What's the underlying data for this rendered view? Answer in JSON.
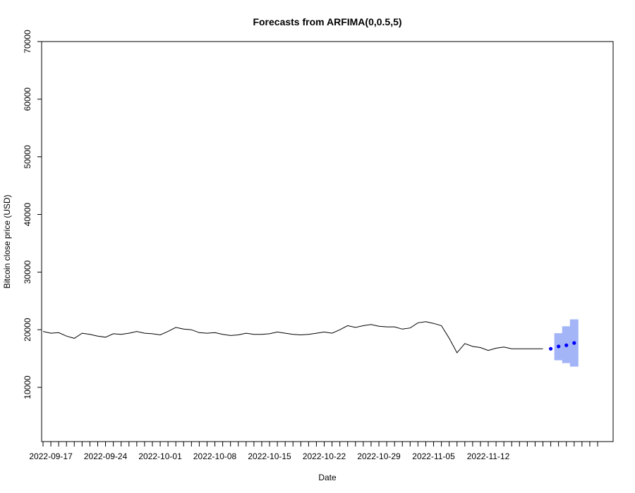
{
  "chart_data": {
    "type": "line",
    "title": "Forecasts from ARFIMA(0,0.5,5)",
    "xlabel": "Date",
    "ylabel": "Bitcoin close price (USD)",
    "ylim": [
      0,
      70000
    ],
    "y_ticks": [
      10000,
      20000,
      30000,
      40000,
      50000,
      60000,
      70000
    ],
    "x_ticks": [
      "2022-09-17",
      "2022-09-24",
      "2022-10-01",
      "2022-10-08",
      "2022-10-15",
      "2022-10-22",
      "2022-10-29",
      "2022-11-05",
      "2022-11-12"
    ],
    "x_range": [
      "2022-09-16",
      "2022-11-26"
    ],
    "grid": false,
    "series": [
      {
        "values": [
          [
            "2022-09-16",
            19700
          ],
          [
            "2022-09-17",
            19400
          ],
          [
            "2022-09-18",
            19500
          ],
          [
            "2022-09-19",
            18900
          ],
          [
            "2022-09-20",
            18500
          ],
          [
            "2022-09-21",
            19400
          ],
          [
            "2022-09-22",
            19200
          ],
          [
            "2022-09-23",
            18900
          ],
          [
            "2022-09-24",
            18700
          ],
          [
            "2022-09-25",
            19300
          ],
          [
            "2022-09-26",
            19200
          ],
          [
            "2022-09-27",
            19400
          ],
          [
            "2022-09-28",
            19700
          ],
          [
            "2022-09-29",
            19400
          ],
          [
            "2022-09-30",
            19300
          ],
          [
            "2022-10-01",
            19100
          ],
          [
            "2022-10-02",
            19700
          ],
          [
            "2022-10-03",
            20400
          ],
          [
            "2022-10-04",
            20100
          ],
          [
            "2022-10-05",
            20000
          ],
          [
            "2022-10-06",
            19500
          ],
          [
            "2022-10-07",
            19400
          ],
          [
            "2022-10-08",
            19500
          ],
          [
            "2022-10-09",
            19200
          ],
          [
            "2022-10-10",
            19000
          ],
          [
            "2022-10-11",
            19100
          ],
          [
            "2022-10-12",
            19400
          ],
          [
            "2022-10-13",
            19200
          ],
          [
            "2022-10-14",
            19200
          ],
          [
            "2022-10-15",
            19300
          ],
          [
            "2022-10-16",
            19600
          ],
          [
            "2022-10-17",
            19400
          ],
          [
            "2022-10-18",
            19200
          ],
          [
            "2022-10-19",
            19100
          ],
          [
            "2022-10-20",
            19200
          ],
          [
            "2022-10-21",
            19400
          ],
          [
            "2022-10-22",
            19600
          ],
          [
            "2022-10-23",
            19400
          ],
          [
            "2022-10-24",
            20000
          ],
          [
            "2022-10-25",
            20700
          ],
          [
            "2022-10-26",
            20400
          ],
          [
            "2022-10-27",
            20700
          ],
          [
            "2022-10-28",
            20900
          ],
          [
            "2022-10-29",
            20600
          ],
          [
            "2022-10-30",
            20500
          ],
          [
            "2022-10-31",
            20500
          ],
          [
            "2022-11-01",
            20100
          ],
          [
            "2022-11-02",
            20300
          ],
          [
            "2022-11-03",
            21200
          ],
          [
            "2022-11-04",
            21400
          ],
          [
            "2022-11-05",
            21100
          ],
          [
            "2022-11-06",
            20700
          ],
          [
            "2022-11-07",
            18500
          ],
          [
            "2022-11-08",
            16000
          ],
          [
            "2022-11-09",
            17600
          ],
          [
            "2022-11-10",
            17100
          ],
          [
            "2022-11-11",
            16900
          ],
          [
            "2022-11-12",
            16400
          ],
          [
            "2022-11-13",
            16800
          ],
          [
            "2022-11-14",
            17000
          ],
          [
            "2022-11-15",
            16700
          ],
          [
            "2022-11-16",
            16700
          ],
          [
            "2022-11-17",
            16700
          ],
          [
            "2022-11-18",
            16700
          ],
          [
            "2022-11-19",
            16700
          ]
        ],
        "color": "#000000"
      },
      {
        "values": [
          [
            "2022-11-20",
            16700
          ],
          [
            "2022-11-21",
            17100
          ],
          [
            "2022-11-22",
            17300
          ],
          [
            "2022-11-23",
            17700
          ]
        ],
        "color": "#0000ff"
      }
    ],
    "intervals": [
      {
        "color": "#a3b5f7",
        "bands": [
          {
            "x": "2022-11-21",
            "lo": 14700,
            "hi": 19400
          },
          {
            "x": "2022-11-22",
            "lo": 14200,
            "hi": 20600
          },
          {
            "x": "2022-11-23",
            "lo": 13600,
            "hi": 21800
          }
        ]
      }
    ]
  }
}
